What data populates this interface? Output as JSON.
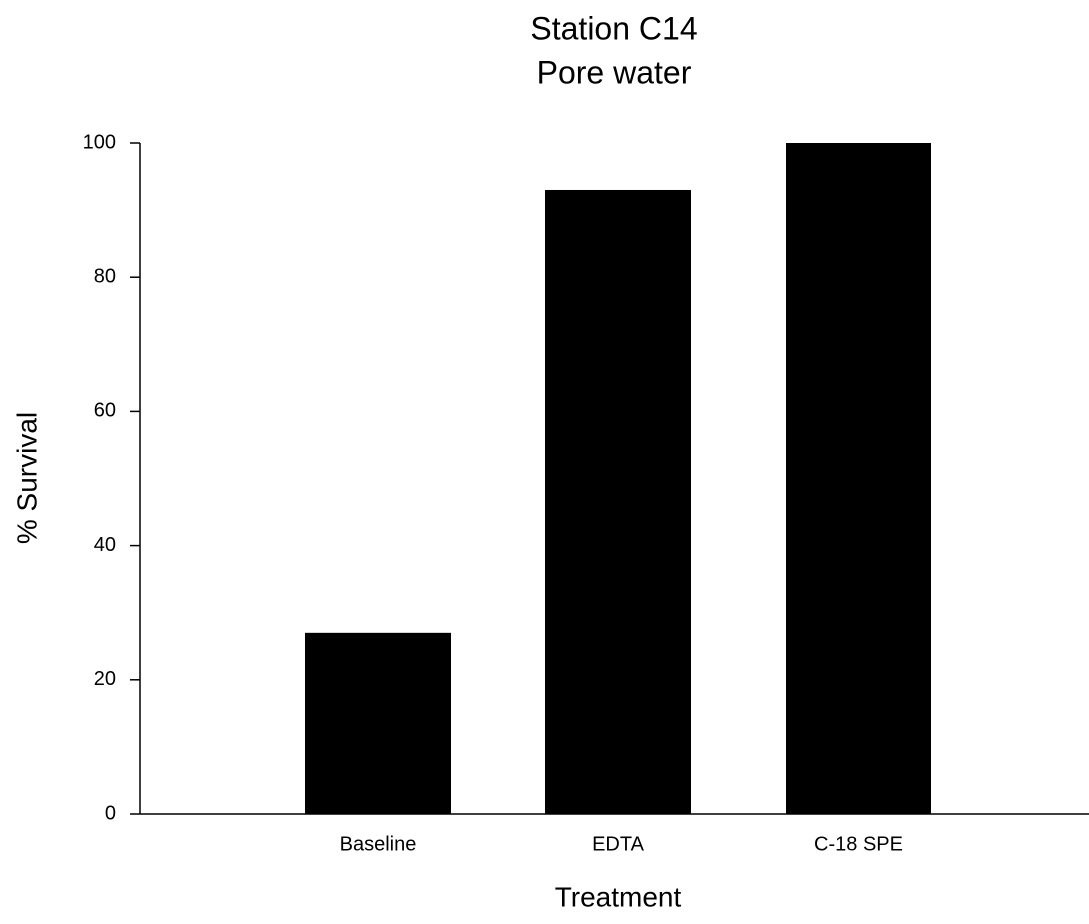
{
  "chart_data": {
    "type": "bar",
    "title": [
      "Station C14",
      "Pore water"
    ],
    "xlabel": "Treatment",
    "ylabel": "% Survival",
    "categories": [
      "Baseline",
      "EDTA",
      "C-18 SPE"
    ],
    "values": [
      27,
      93,
      100
    ],
    "ylim": [
      0,
      100
    ],
    "yticks": [
      0,
      20,
      40,
      60,
      80,
      100
    ],
    "grid": false,
    "legend": "none",
    "bar_color": "#000000"
  }
}
